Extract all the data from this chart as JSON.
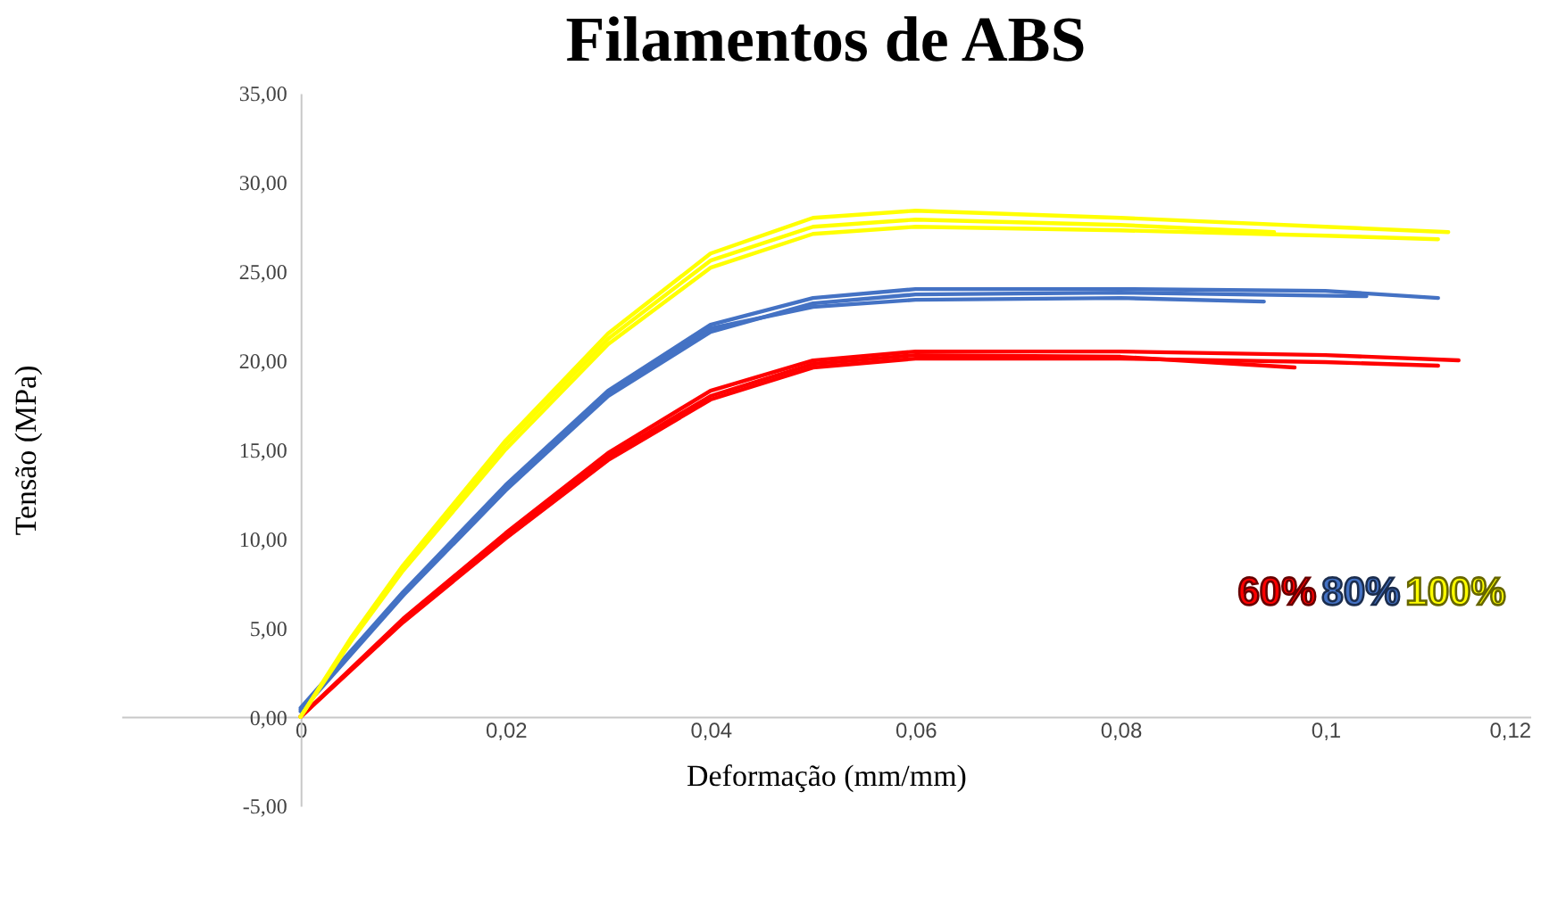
{
  "chart_data": {
    "type": "line",
    "title": "Filamentos de ABS",
    "xlabel": "Deformação (mm/mm)",
    "ylabel": "Tensão (MPa)",
    "xlim": [
      -0.0175,
      0.12
    ],
    "ylim": [
      -5,
      35
    ],
    "xticks": [
      {
        "value": 0,
        "label": "0"
      },
      {
        "value": 0.02,
        "label": "0,02"
      },
      {
        "value": 0.04,
        "label": "0,04"
      },
      {
        "value": 0.06,
        "label": "0,06"
      },
      {
        "value": 0.08,
        "label": "0,08"
      },
      {
        "value": 0.1,
        "label": "0,1"
      },
      {
        "value": 0.12,
        "label": "0,12"
      }
    ],
    "yticks": [
      {
        "value": -5,
        "label": "-5,00"
      },
      {
        "value": 0,
        "label": "0,00"
      },
      {
        "value": 5,
        "label": "5,00"
      },
      {
        "value": 10,
        "label": "10,00"
      },
      {
        "value": 15,
        "label": "15,00"
      },
      {
        "value": 20,
        "label": "20,00"
      },
      {
        "value": 25,
        "label": "25,00"
      },
      {
        "value": 30,
        "label": "30,00"
      },
      {
        "value": 35,
        "label": "35,00"
      }
    ],
    "grid": false,
    "legend": "bottom right",
    "marker": "none",
    "line_style": "solid",
    "series": [
      {
        "name": "60%",
        "color": "#ff0000",
        "x": [
          0,
          0.01,
          0.02,
          0.03,
          0.04,
          0.05,
          0.06,
          0.08,
          0.1,
          0.113
        ],
        "values": [
          0,
          5.5,
          10.3,
          14.8,
          18.3,
          20.0,
          20.5,
          20.5,
          20.3,
          20.0
        ]
      },
      {
        "color": "#ff0000",
        "x": [
          0,
          0.01,
          0.02,
          0.03,
          0.04,
          0.05,
          0.06,
          0.08,
          0.1,
          0.111
        ],
        "values": [
          0,
          5.3,
          10.0,
          14.4,
          17.8,
          19.6,
          20.1,
          20.1,
          19.9,
          19.7
        ]
      },
      {
        "color": "#ff0000",
        "x": [
          0,
          0.01,
          0.02,
          0.03,
          0.04,
          0.05,
          0.06,
          0.08,
          0.097
        ],
        "values": [
          0,
          5.4,
          10.1,
          14.6,
          18.0,
          19.8,
          20.3,
          20.2,
          19.6
        ]
      },
      {
        "name": "80%",
        "color": "#4472c4",
        "x": [
          0,
          0.01,
          0.02,
          0.03,
          0.04,
          0.05,
          0.06,
          0.08,
          0.1,
          0.111
        ],
        "values": [
          0.5,
          7.0,
          13.0,
          18.3,
          22.0,
          23.5,
          24.0,
          24.0,
          23.9,
          23.5
        ]
      },
      {
        "color": "#4472c4",
        "x": [
          0,
          0.01,
          0.02,
          0.03,
          0.04,
          0.05,
          0.06,
          0.08,
          0.104
        ],
        "values": [
          0.3,
          6.8,
          12.7,
          18.0,
          21.6,
          23.2,
          23.7,
          23.8,
          23.6
        ]
      },
      {
        "color": "#4472c4",
        "x": [
          0,
          0.01,
          0.02,
          0.03,
          0.04,
          0.05,
          0.06,
          0.08,
          0.094
        ],
        "values": [
          0.4,
          6.9,
          12.8,
          18.1,
          21.8,
          23.0,
          23.4,
          23.5,
          23.3
        ]
      },
      {
        "name": "100%",
        "color": "#ffff00",
        "x": [
          0,
          0.005,
          0.01,
          0.02,
          0.03,
          0.04,
          0.05,
          0.06,
          0.08,
          0.1,
          0.112
        ],
        "values": [
          0,
          4.5,
          8.5,
          15.5,
          21.5,
          26.0,
          28.0,
          28.4,
          28.0,
          27.5,
          27.2
        ]
      },
      {
        "color": "#ffff00",
        "x": [
          0,
          0.005,
          0.01,
          0.02,
          0.03,
          0.04,
          0.05,
          0.06,
          0.08,
          0.1,
          0.111
        ],
        "values": [
          0,
          4.3,
          8.2,
          15.0,
          20.9,
          25.2,
          27.1,
          27.5,
          27.3,
          27.0,
          26.8
        ]
      },
      {
        "color": "#ffff00",
        "x": [
          0,
          0.005,
          0.01,
          0.02,
          0.03,
          0.04,
          0.05,
          0.06,
          0.08,
          0.095
        ],
        "values": [
          0,
          4.4,
          8.4,
          15.3,
          21.2,
          25.6,
          27.5,
          27.9,
          27.6,
          27.2
        ]
      }
    ]
  }
}
